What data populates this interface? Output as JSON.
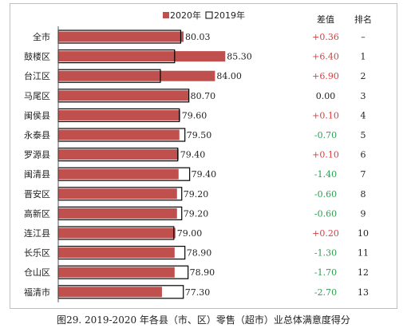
{
  "chart_data": {
    "type": "bar",
    "orientation": "horizontal",
    "categories": [
      "全市",
      "鼓楼区",
      "台江区",
      "马尾区",
      "闽侯县",
      "永泰县",
      "罗源县",
      "闽清县",
      "晋安区",
      "高新区",
      "连江县",
      "长乐区",
      "仓山区",
      "福清市"
    ],
    "series": [
      {
        "name": "2020年",
        "color": "#c0504d",
        "values": [
          80.03,
          85.3,
          84.0,
          80.7,
          79.6,
          79.5,
          79.4,
          79.4,
          79.2,
          79.2,
          79.0,
          78.9,
          78.9,
          77.3
        ],
        "labels": [
          "80.03",
          "85.30",
          "84.00",
          "80.70",
          "79.60",
          "79.50",
          "79.40",
          "79.40",
          "79.20",
          "79.20",
          "79.00",
          "78.90",
          "78.90",
          "77.30"
        ]
      },
      {
        "name": "2019年",
        "color": "#ffffff",
        "stroke": "#000000",
        "values": [
          79.67,
          78.9,
          77.1,
          80.7,
          79.5,
          80.2,
          79.3,
          80.8,
          79.8,
          79.8,
          78.8,
          80.2,
          80.6,
          80.0
        ]
      }
    ],
    "xlim": [
      0,
      90
    ],
    "grid": false,
    "legend": "top",
    "diff_header": "差值",
    "rank_header": "排名",
    "diffs": [
      "+0.36",
      "+6.40",
      "+6.90",
      "0.00",
      "+0.10",
      "-0.70",
      "+0.10",
      "-1.40",
      "-0.60",
      "-0.60",
      "+0.20",
      "-1.30",
      "-1.70",
      "-2.70"
    ],
    "ranks": [
      "–",
      "1",
      "2",
      "3",
      "4",
      "5",
      "6",
      "7",
      "8",
      "9",
      "10",
      "11",
      "12",
      "13"
    ],
    "diff_colors": {
      "positive": "#e0393e",
      "negative": "#2e9e50",
      "zero": "#222222"
    }
  },
  "caption": "图29.  2019-2020 年各县（市、区）零售（超市）业总体满意度得分"
}
